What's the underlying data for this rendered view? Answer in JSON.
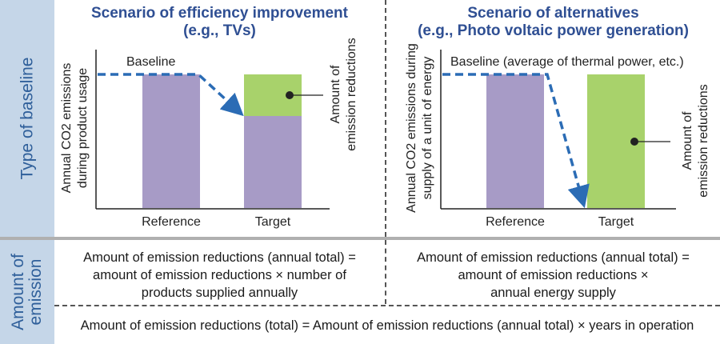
{
  "sidebar": {
    "top_label": "Type of baseline",
    "bottom_label_line1": "Amount of",
    "bottom_label_line2": "emission"
  },
  "left_panel": {
    "title_line1": "Scenario of efficiency improvement",
    "title_line2": "(e.g., TVs)",
    "ylabel_line1": "Annual CO2 emissions",
    "ylabel_line2": "during product usage",
    "baseline_label": "Baseline",
    "annotation_line1": "Amount of",
    "annotation_line2": "emission reductions",
    "x_reference": "Reference",
    "x_target": "Target",
    "formula_line1": "Amount of emission reductions (annual total) =",
    "formula_line2": "amount of emission reductions × number of",
    "formula_line3": "products supplied annually"
  },
  "right_panel": {
    "title_line1": "Scenario of alternatives",
    "title_line2": "(e.g., Photo voltaic power generation)",
    "ylabel_line1": "Annual CO2 emissions during",
    "ylabel_line2": "supply of a unit of energy",
    "baseline_label": "Baseline (average of thermal power, etc.)",
    "annotation_line1": "Amount of",
    "annotation_line2": "emission reductions",
    "x_reference": "Reference",
    "x_target": "Target",
    "formula_line1": "Amount of emission reductions (annual total) =",
    "formula_line2": "amount of emission reductions ×",
    "formula_line3": "annual energy supply"
  },
  "total_formula": "Amount of emission reductions (total) = Amount of emission reductions (annual total) × years in operation",
  "colors": {
    "reference_bar": "#a79bc6",
    "reduction_bar": "#a8d26b",
    "arrow": "#2b6cb5",
    "title": "#2f4f93",
    "sidebar_bg": "#c5d6e8",
    "sidebar_text": "#2f5f9a"
  }
}
